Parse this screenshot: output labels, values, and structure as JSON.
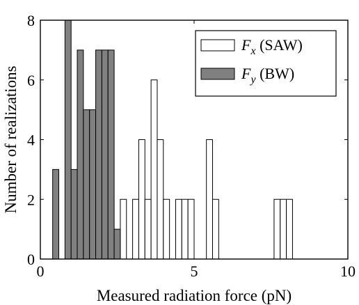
{
  "chart_data": {
    "type": "bar",
    "xlabel": "Measured radiation force (pN)",
    "ylabel": "Number of realizations",
    "xlim": [
      0,
      10
    ],
    "ylim": [
      0,
      8
    ],
    "x_ticks": [
      "0",
      "5",
      "10"
    ],
    "y_ticks": [
      "0",
      "2",
      "4",
      "6",
      "8"
    ],
    "bin_width": 0.2,
    "legend_position": "top-right",
    "series": [
      {
        "name": "Fx (SAW)",
        "symbol": "F",
        "subscript": "x",
        "suffix": " (SAW)",
        "color": "#ffffff",
        "bins": [
          {
            "x": 2.7,
            "count": 2
          },
          {
            "x": 3.1,
            "count": 2
          },
          {
            "x": 3.3,
            "count": 4
          },
          {
            "x": 3.5,
            "count": 2
          },
          {
            "x": 3.7,
            "count": 6
          },
          {
            "x": 3.9,
            "count": 4
          },
          {
            "x": 4.1,
            "count": 2
          },
          {
            "x": 4.5,
            "count": 2
          },
          {
            "x": 4.7,
            "count": 2
          },
          {
            "x": 4.9,
            "count": 2
          },
          {
            "x": 5.5,
            "count": 4
          },
          {
            "x": 5.7,
            "count": 2
          },
          {
            "x": 7.7,
            "count": 2
          },
          {
            "x": 7.9,
            "count": 2
          },
          {
            "x": 8.1,
            "count": 2
          }
        ]
      },
      {
        "name": "Fy (BW)",
        "symbol": "F",
        "subscript": "y",
        "suffix": " (BW)",
        "color": "#808080",
        "bins": [
          {
            "x": 0.5,
            "count": 3
          },
          {
            "x": 0.9,
            "count": 8
          },
          {
            "x": 1.1,
            "count": 3
          },
          {
            "x": 1.3,
            "count": 7
          },
          {
            "x": 1.5,
            "count": 5
          },
          {
            "x": 1.7,
            "count": 5
          },
          {
            "x": 1.9,
            "count": 7
          },
          {
            "x": 2.1,
            "count": 7
          },
          {
            "x": 2.3,
            "count": 7
          },
          {
            "x": 2.5,
            "count": 1
          }
        ]
      }
    ]
  }
}
